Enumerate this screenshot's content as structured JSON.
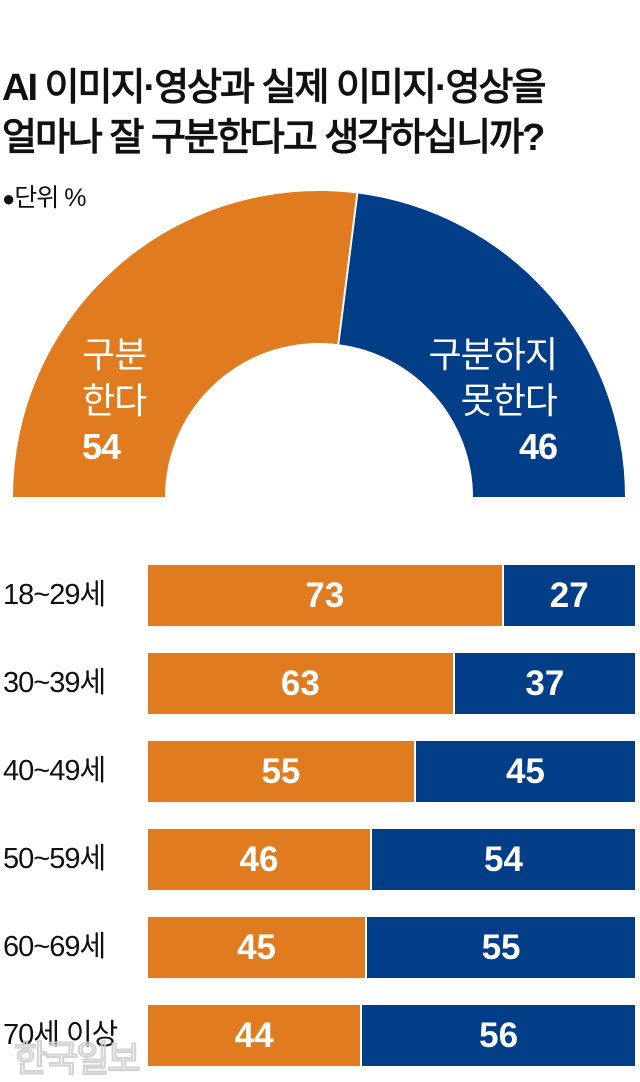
{
  "header": {
    "title_line1": "AI 이미지·영상과 실제 이미지·영상을",
    "title_line2": "얼마나 잘 구분한다고 생각하십니까?",
    "unit_bullet": "●",
    "unit_label": "단위 %"
  },
  "colors": {
    "distinguish": "#E07B1F",
    "cannot_distinguish": "#023D87"
  },
  "donut": {
    "left_line1": "구분",
    "left_line2": "한다",
    "left_value": "54",
    "right_line1": "구분하지",
    "right_line2": "못한다",
    "right_value": "46"
  },
  "rows": [
    {
      "label": "18~29세",
      "a": "73",
      "b": "27"
    },
    {
      "label": "30~39세",
      "a": "63",
      "b": "37"
    },
    {
      "label": "40~49세",
      "a": "55",
      "b": "45"
    },
    {
      "label": "50~59세",
      "a": "46",
      "b": "54"
    },
    {
      "label": "60~69세",
      "a": "45",
      "b": "55"
    },
    {
      "label": "70세 이상",
      "a": "44",
      "b": "56"
    }
  ],
  "watermark": "한국일보",
  "chart_data": [
    {
      "type": "pie",
      "subtype": "half-donut",
      "title": "AI 이미지·영상과 실제 이미지·영상을 얼마나 잘 구분한다고 생각하십니까?",
      "unit": "%",
      "categories": [
        "구분한다",
        "구분하지 못한다"
      ],
      "values": [
        54,
        46
      ],
      "colors": [
        "#E07B1F",
        "#023D87"
      ]
    },
    {
      "type": "bar",
      "subtype": "100% stacked horizontal",
      "unit": "%",
      "categories": [
        "18~29세",
        "30~39세",
        "40~49세",
        "50~59세",
        "60~69세",
        "70세 이상"
      ],
      "series": [
        {
          "name": "구분한다",
          "color": "#E07B1F",
          "values": [
            73,
            63,
            55,
            46,
            45,
            44
          ]
        },
        {
          "name": "구분하지 못한다",
          "color": "#023D87",
          "values": [
            27,
            37,
            45,
            54,
            55,
            56
          ]
        }
      ],
      "xlim": [
        0,
        100
      ],
      "grid": false
    }
  ]
}
